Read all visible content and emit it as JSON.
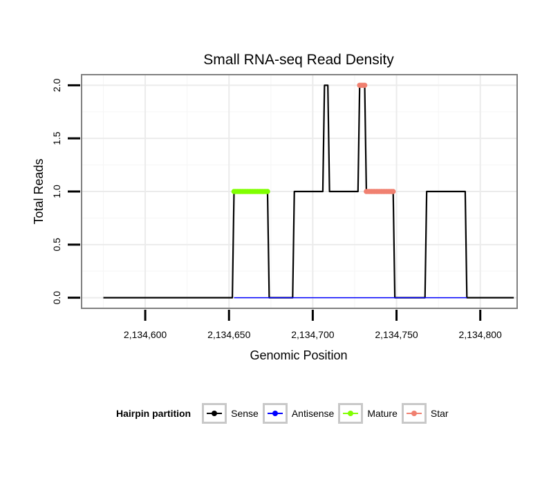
{
  "chart_data": {
    "type": "line",
    "title": "Small RNA-seq Read Density",
    "xlabel": "Genomic Position",
    "ylabel": "Total Reads",
    "xlim": [
      2134562,
      2134822
    ],
    "ylim": [
      -0.1,
      2.1
    ],
    "x_ticks": [
      2134600,
      2134650,
      2134700,
      2134750,
      2134800
    ],
    "x_tick_labels": [
      "2,134,600",
      "2,134,650",
      "2,134,700",
      "2,134,750",
      "2,134,800"
    ],
    "y_ticks": [
      0,
      0.5,
      1,
      1.5,
      2
    ],
    "y_tick_labels": [
      "0.0",
      "0.5",
      "1.0",
      "1.5",
      "2.0"
    ],
    "legend_title": "Hairpin partition",
    "legend_position": "bottom",
    "series": [
      {
        "name": "Sense",
        "color": "#000000",
        "x": [
          2134575,
          2134652,
          2134653,
          2134673,
          2134674,
          2134688,
          2134689,
          2134706,
          2134707,
          2134709,
          2134710,
          2134727,
          2134728,
          2134731,
          2134732,
          2134748,
          2134749,
          2134767,
          2134768,
          2134791,
          2134792,
          2134820
        ],
        "y": [
          0,
          0,
          1,
          1,
          0,
          0,
          1,
          1,
          2,
          2,
          1,
          1,
          2,
          2,
          1,
          1,
          0,
          0,
          1,
          1,
          0,
          0
        ]
      },
      {
        "name": "Antisense",
        "color": "#0000ff",
        "x": [
          2134653,
          2134792
        ],
        "y": [
          0,
          0
        ]
      },
      {
        "name": "Mature",
        "color": "#80ff00",
        "x": [
          2134653,
          2134654,
          2134655,
          2134656,
          2134657,
          2134658,
          2134659,
          2134660,
          2134661,
          2134662,
          2134663,
          2134664,
          2134665,
          2134666,
          2134667,
          2134668,
          2134669,
          2134670,
          2134671,
          2134672,
          2134673
        ],
        "y": [
          1,
          1,
          1,
          1,
          1,
          1,
          1,
          1,
          1,
          1,
          1,
          1,
          1,
          1,
          1,
          1,
          1,
          1,
          1,
          1,
          1
        ]
      },
      {
        "name": "Star",
        "color": "#f08070",
        "x": [
          2134728,
          2134729,
          2134730,
          2134731,
          2134732,
          2134733,
          2134734,
          2134735,
          2134736,
          2134737,
          2134738,
          2134739,
          2134740,
          2134741,
          2134742,
          2134743,
          2134744,
          2134745,
          2134746,
          2134747,
          2134748
        ],
        "y": [
          2,
          2,
          2,
          2,
          1,
          1,
          1,
          1,
          1,
          1,
          1,
          1,
          1,
          1,
          1,
          1,
          1,
          1,
          1,
          1,
          1
        ]
      }
    ]
  }
}
